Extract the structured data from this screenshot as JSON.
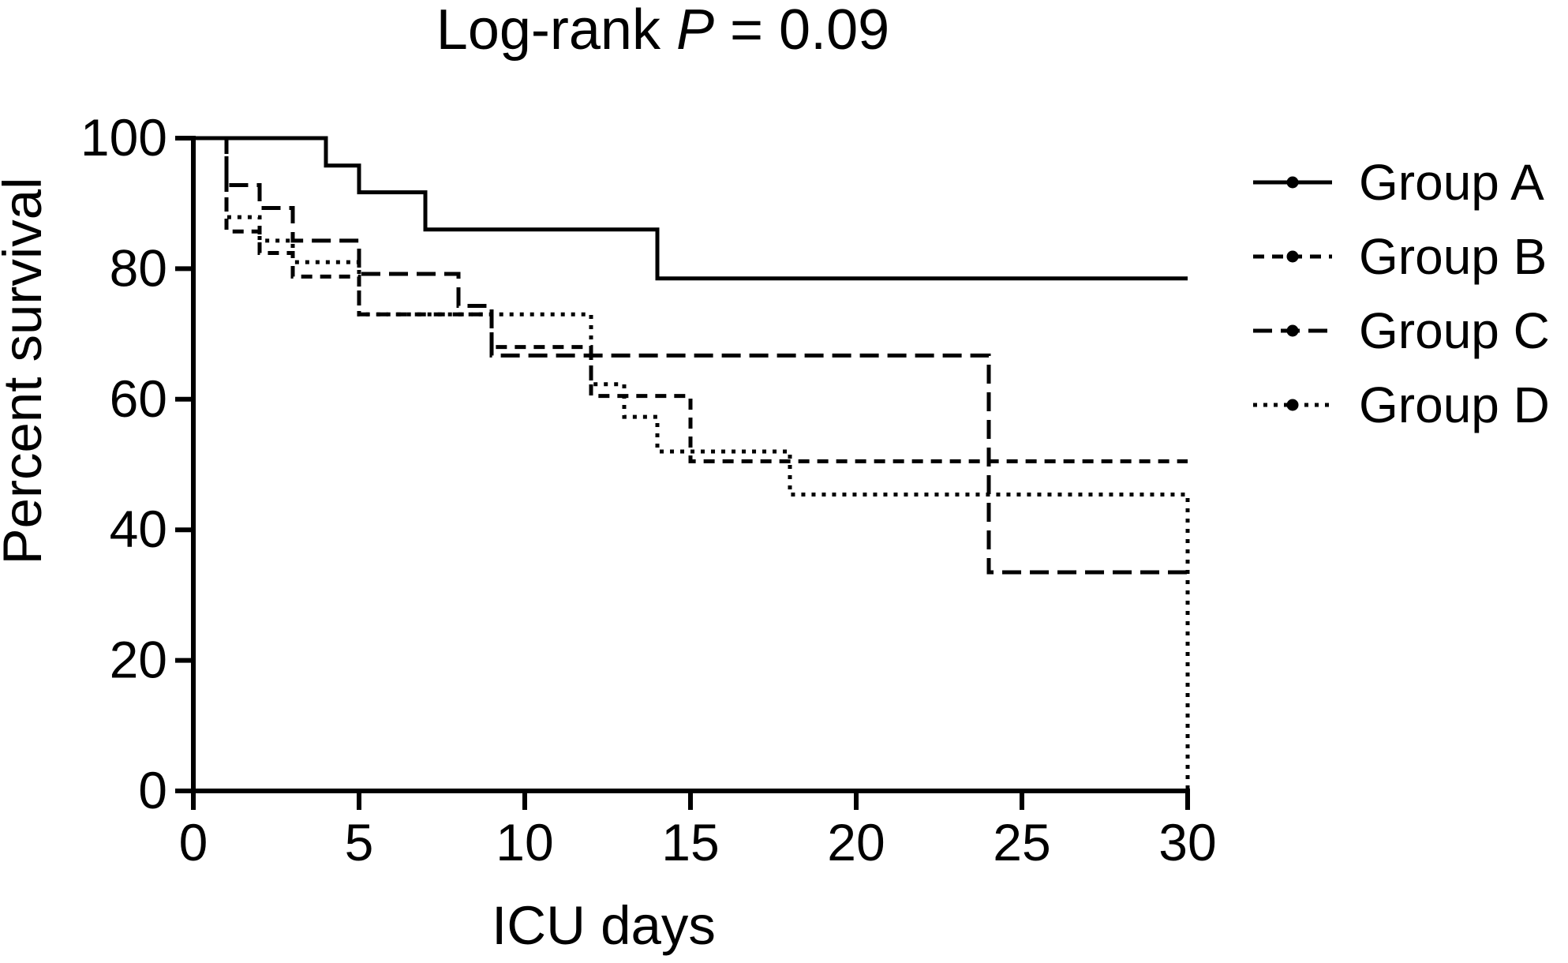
{
  "chart_data": {
    "type": "line",
    "subtype": "kaplan-meier-step-curves",
    "title": "Log-rank P = 0.09",
    "title_parts": {
      "prefix": "Log-rank ",
      "italic": "P",
      "suffix": " = 0.09"
    },
    "xlabel": "ICU days",
    "ylabel": "Percent survival",
    "xlim": [
      0,
      30
    ],
    "ylim": [
      0,
      100
    ],
    "x_ticks": [
      0,
      5,
      10,
      15,
      20,
      25,
      30
    ],
    "y_ticks": [
      0,
      20,
      40,
      60,
      80,
      100
    ],
    "grid": false,
    "legend_position": "right",
    "line_color": "#000000",
    "background_color": "#ffffff",
    "series": [
      {
        "name": "Group A",
        "style": "solid",
        "end_day": 30,
        "steps": [
          [
            0,
            100
          ],
          [
            4,
            95.8
          ],
          [
            5,
            91.7
          ],
          [
            7,
            86
          ],
          [
            14,
            78.5
          ]
        ]
      },
      {
        "name": "Group B",
        "style": "short-dash",
        "end_day": 30,
        "steps": [
          [
            0,
            100
          ],
          [
            1,
            85.7
          ],
          [
            2,
            82.4
          ],
          [
            3,
            78.8
          ],
          [
            5,
            73
          ],
          [
            9,
            68
          ],
          [
            12,
            60.5
          ],
          [
            15,
            50.5
          ]
        ]
      },
      {
        "name": "Group C",
        "style": "medium-dash",
        "end_day": 30,
        "steps": [
          [
            0,
            100
          ],
          [
            1,
            92.8
          ],
          [
            2,
            89.3
          ],
          [
            3,
            84.3
          ],
          [
            5,
            79.2
          ],
          [
            8,
            74.3
          ],
          [
            9,
            66.7
          ],
          [
            24,
            33.5
          ]
        ]
      },
      {
        "name": "Group D",
        "style": "dot",
        "end_day": 30,
        "steps": [
          [
            0,
            100
          ],
          [
            1,
            87.9
          ],
          [
            2,
            84.3
          ],
          [
            3,
            81
          ],
          [
            5,
            73
          ],
          [
            12,
            62.3
          ],
          [
            13,
            57.3
          ],
          [
            14,
            52
          ],
          [
            18,
            45.4
          ],
          [
            30,
            0
          ]
        ]
      }
    ]
  }
}
